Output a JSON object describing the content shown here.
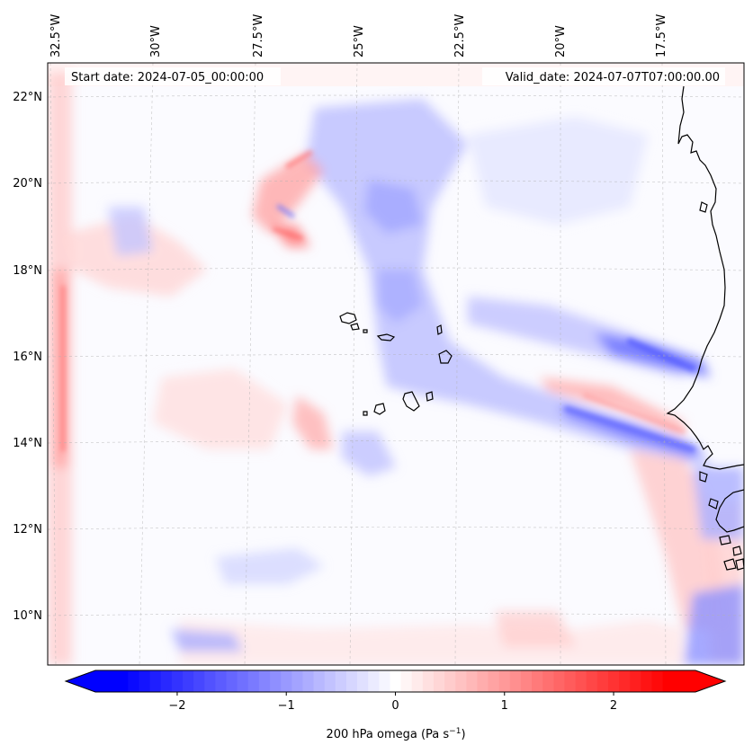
{
  "map": {
    "start_date_text": "Start date: 2024-07-05_00:00:00",
    "valid_date_text": "Valid_date: 2024-07-07T07:00:00.00",
    "lon_labels": [
      "32.5°W",
      "30°W",
      "27.5°W",
      "25°W",
      "22.5°W",
      "20°W",
      "17.5°W"
    ],
    "lat_labels": [
      "22°N",
      "20°N",
      "18°N",
      "16°N",
      "14°N",
      "12°N",
      "10°N"
    ]
  },
  "colorbar": {
    "label_main": "200 hPa omega (Pa s",
    "label_sup": "−1",
    "label_close": ")",
    "ticks": [
      "−2",
      "−1",
      "0",
      "1",
      "2"
    ],
    "min": -2.75,
    "max": 2.75,
    "cmap": "bwr"
  },
  "colors": {
    "negative": "#0000ff",
    "neutral": "#ffffff",
    "positive": "#ff0000",
    "coast": "#000000",
    "grid": "#b0b0b0"
  }
}
